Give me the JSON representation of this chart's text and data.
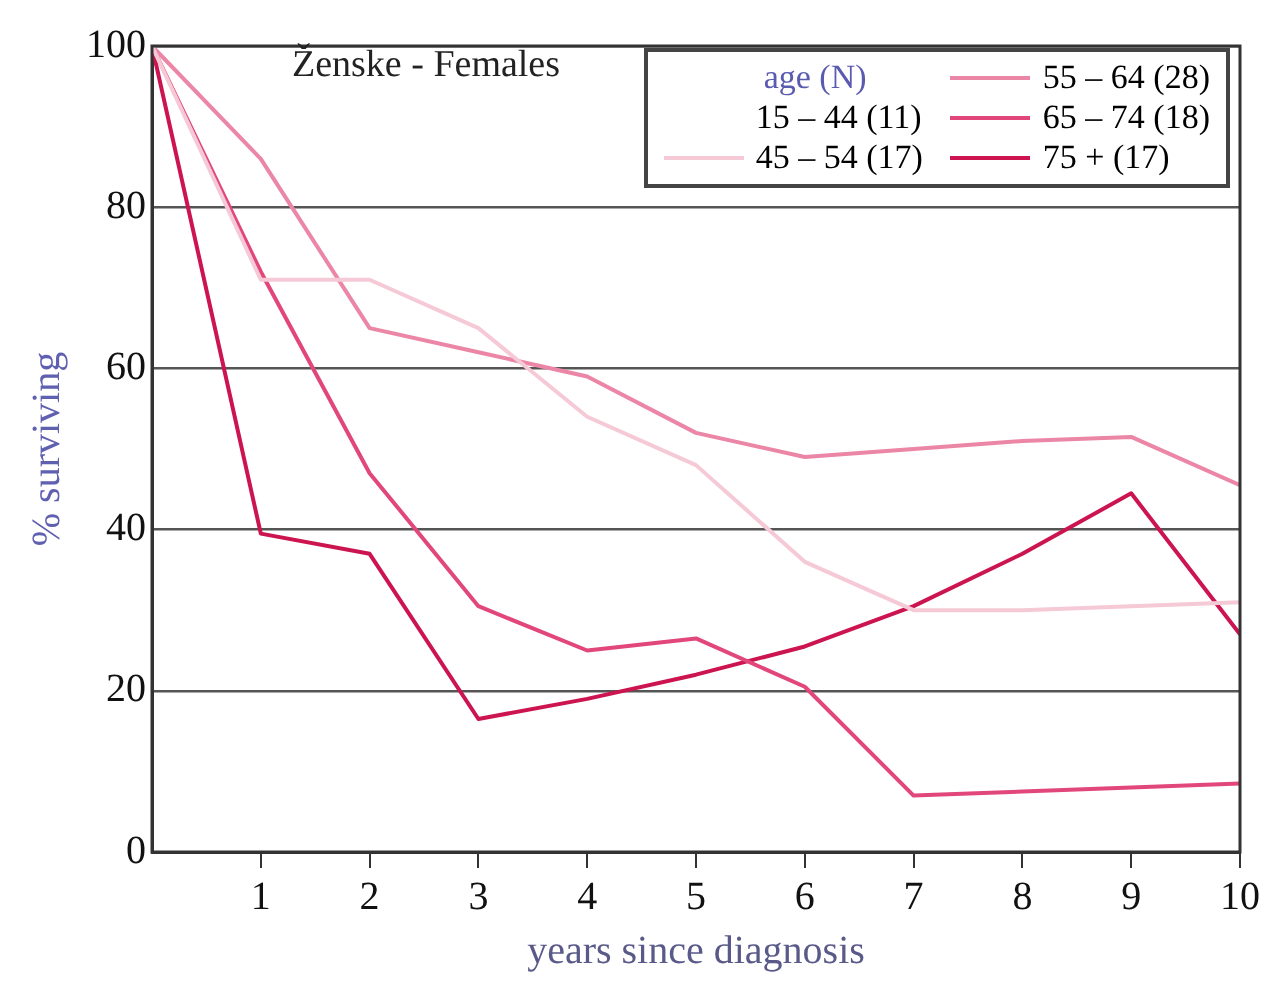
{
  "chart_data": {
    "type": "line",
    "title": "Ženske - Females",
    "xlabel": "years since diagnosis",
    "ylabel": "% surviving",
    "legend_title": "age (N)",
    "legend": "top right",
    "grid": "y",
    "marker": "none",
    "line_style": "solid",
    "x": [
      0,
      1,
      2,
      3,
      4,
      5,
      6,
      7,
      8,
      9,
      10
    ],
    "xlim": [
      0,
      10
    ],
    "xticks": [
      1,
      2,
      3,
      4,
      5,
      6,
      7,
      8,
      9,
      10
    ],
    "ylim": [
      0,
      100
    ],
    "yticks": [
      0,
      20,
      40,
      60,
      80,
      100
    ],
    "series": [
      {
        "name": "15 – 44 (11)",
        "values": [
          null,
          null,
          null,
          null,
          null,
          null,
          null,
          null,
          null,
          null,
          null
        ]
      },
      {
        "name": "45 – 54 (17)",
        "color": "#f6c9d6",
        "values": [
          100,
          71,
          71,
          65,
          54,
          48,
          36,
          30,
          30,
          30.5,
          31
        ]
      },
      {
        "name": "55 – 64 (28)",
        "color": "#ec86a6",
        "values": [
          100,
          86,
          65,
          62,
          59,
          52,
          49,
          50,
          51,
          51.5,
          45.5
        ]
      },
      {
        "name": "65 – 74 (18)",
        "color": "#e2477c",
        "values": [
          100,
          72,
          47,
          30.5,
          25,
          26.5,
          20.5,
          7,
          7.5,
          8,
          8.5
        ]
      },
      {
        "name": "75 + (17)",
        "color": "#cc1450",
        "values": [
          100,
          39.5,
          37,
          16.5,
          19,
          22,
          25.5,
          30.5,
          37,
          44.5,
          27
        ]
      }
    ]
  }
}
